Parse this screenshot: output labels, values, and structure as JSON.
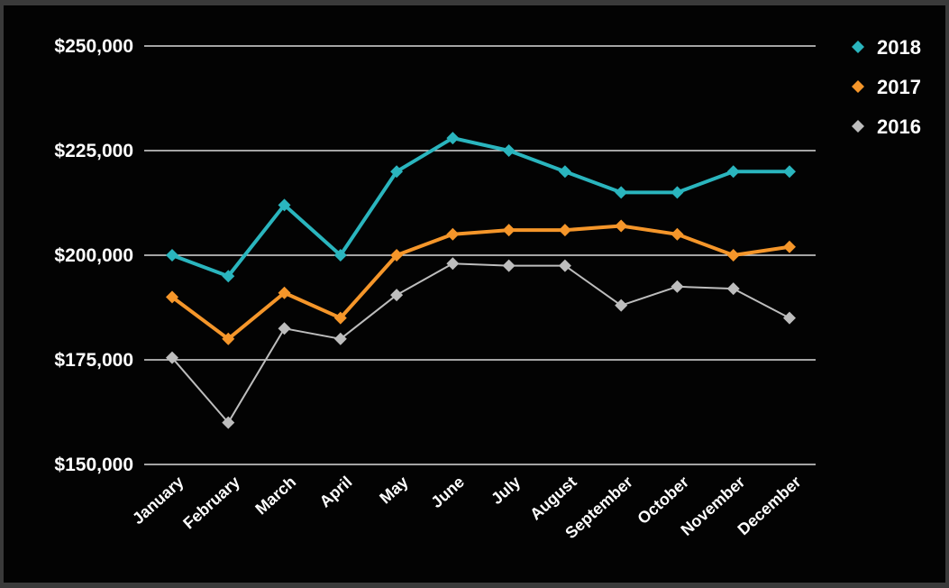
{
  "chart_data": {
    "type": "line",
    "title": "",
    "xlabel": "",
    "ylabel": "",
    "ylim": [
      150000,
      250000
    ],
    "y_ticks": [
      {
        "value": 250000,
        "label": "$250,000"
      },
      {
        "value": 225000,
        "label": "$225,000"
      },
      {
        "value": 200000,
        "label": "$200,000"
      },
      {
        "value": 175000,
        "label": "$175,000"
      },
      {
        "value": 150000,
        "label": "$150,000"
      }
    ],
    "grid": "horizontal",
    "legend_position": "right",
    "marker": "diamond",
    "categories": [
      "January",
      "February",
      "March",
      "April",
      "May",
      "June",
      "July",
      "August",
      "September",
      "October",
      "November",
      "December"
    ],
    "series": [
      {
        "name": "2018",
        "color": "#2ab5be",
        "values": [
          200000,
          195000,
          212000,
          200000,
          220000,
          228000,
          225000,
          220000,
          215000,
          215000,
          220000,
          220000
        ]
      },
      {
        "name": "2017",
        "color": "#f5962a",
        "values": [
          190000,
          180000,
          191000,
          185000,
          200000,
          205000,
          206000,
          206000,
          207000,
          205000,
          200000,
          202000
        ]
      },
      {
        "name": "2016",
        "color": "#bdbdbd",
        "values": [
          175500,
          160000,
          182500,
          180000,
          190500,
          198000,
          197500,
          197500,
          188000,
          192500,
          192000,
          185000
        ]
      }
    ]
  }
}
